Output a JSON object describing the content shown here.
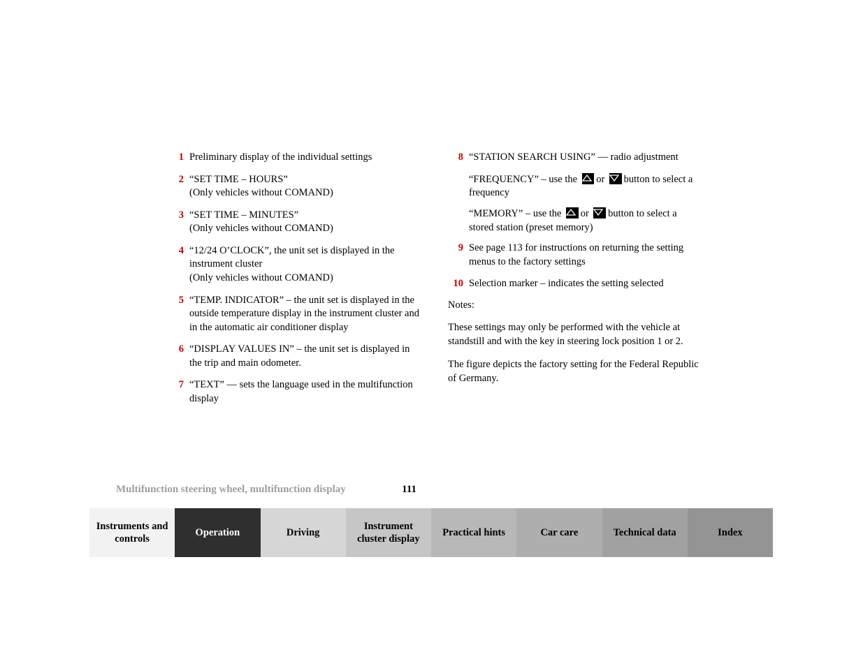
{
  "items_left": [
    {
      "n": "1",
      "text": "Preliminary display of the individual settings"
    },
    {
      "n": "2",
      "text": "“SET TIME – HOURS”\n(Only vehicles without COMAND)"
    },
    {
      "n": "3",
      "text": "“SET TIME – MINUTES”\n(Only vehicles without COMAND)"
    },
    {
      "n": "4",
      "text": "“12/24 O’CLOCK”, the unit set is displayed in the instrument cluster\n(Only vehicles without COMAND)"
    },
    {
      "n": "5",
      "text": "“TEMP. INDICATOR” – the unit set is displayed in the outside temperature display in the instrument cluster and in the automatic air conditioner display"
    },
    {
      "n": "6",
      "text": "“DISPLAY VALUES IN” – the unit set is displayed in the trip and main odometer."
    },
    {
      "n": "7",
      "text": "“TEXT” — sets the language used in the multifunction display"
    }
  ],
  "item_right_8": {
    "n": "8",
    "text": "“STATION SEARCH USING” — radio adjustment",
    "sub_freq_a": "“FREQUENCY” – use the",
    "sub_or": "or",
    "sub_freq_b": "button to select a frequency",
    "sub_mem_a": "“MEMORY” – use the",
    "sub_mem_b": "button to select a stored station (preset memory)"
  },
  "item_right_9": {
    "n": "9",
    "text": "See page 113 for instructions on returning the setting menus to the factory settings"
  },
  "item_right_10": {
    "n": "10",
    "text": "Selection marker – indicates the setting selected"
  },
  "notes": {
    "heading": "Notes:",
    "p1": "These settings may only be performed with the vehicle at standstill and with the key in steering lock position 1 or 2.",
    "p2": "The figure depicts the factory setting for the Federal Republic of Germany."
  },
  "footer": {
    "running_title": "Multifunction steering wheel, multifunction display",
    "page_number": "111"
  },
  "tabs": [
    {
      "label": "Instruments and controls",
      "bg": "#f2f2f2",
      "color": "#000000"
    },
    {
      "label": "Operation",
      "bg": "#2f2f2f",
      "color": "#ffffff"
    },
    {
      "label": "Driving",
      "bg": "#d6d6d6",
      "color": "#000000"
    },
    {
      "label": "Instrument cluster display",
      "bg": "#c6c6c6",
      "color": "#000000"
    },
    {
      "label": "Practical hints",
      "bg": "#b8b8b8",
      "color": "#000000"
    },
    {
      "label": "Car care",
      "bg": "#aeaeae",
      "color": "#000000"
    },
    {
      "label": "Technical data",
      "bg": "#a1a1a1",
      "color": "#000000"
    },
    {
      "label": "Index",
      "bg": "#949494",
      "color": "#000000"
    }
  ],
  "colors": {
    "accent_red": "#C40000",
    "running_grey": "#9e9e9e"
  }
}
